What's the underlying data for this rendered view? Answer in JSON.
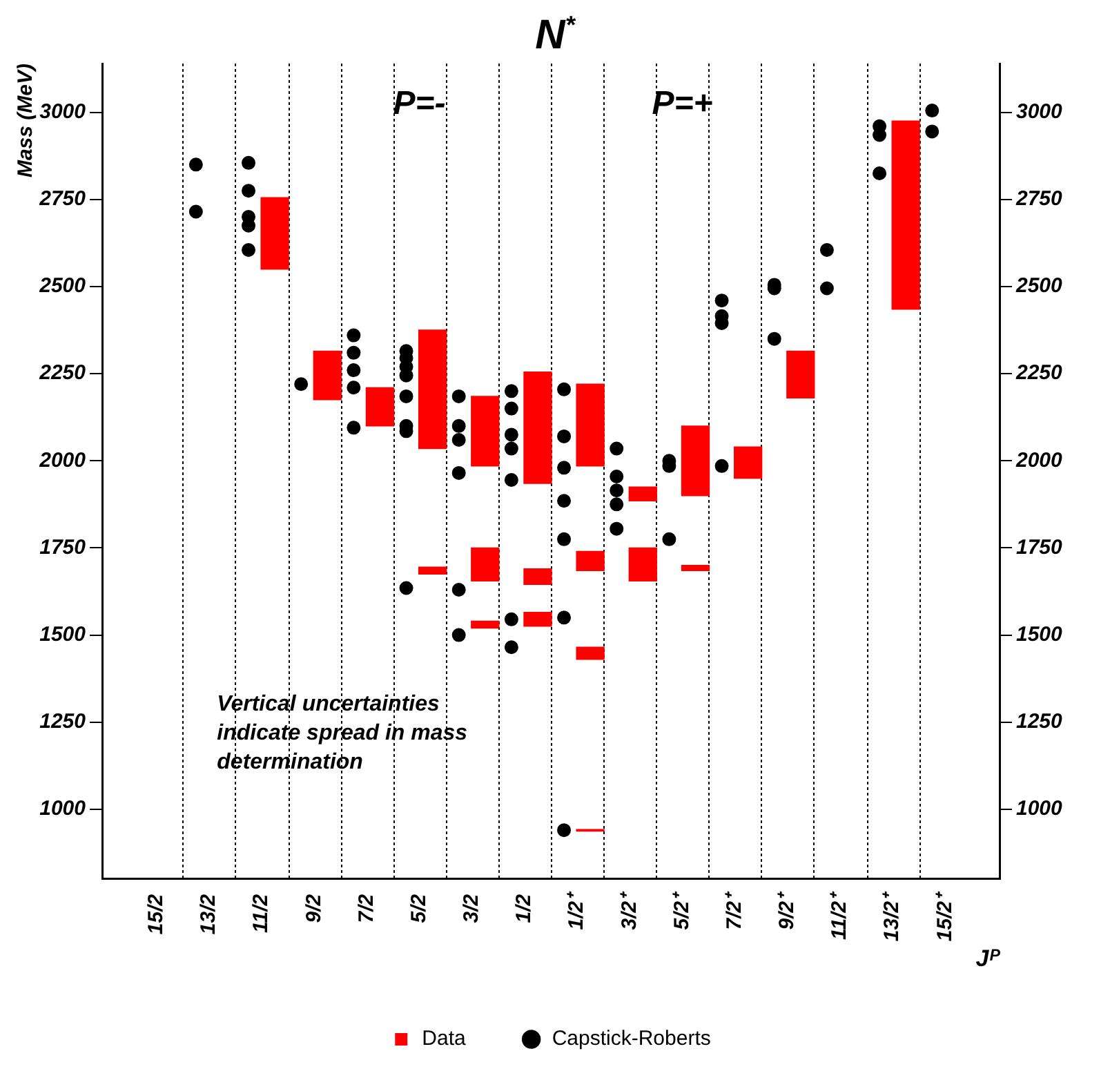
{
  "chart_data": {
    "type": "bar",
    "title": "N$^{*}$",
    "xlabel": "Jᴾ",
    "ylabel": "Mass (MeV)",
    "categories": [
      "15/2",
      "13/2",
      "11/2",
      "9/2",
      "7/2",
      "5/2",
      "3/2",
      "1/2",
      "1/2⁺",
      "3/2⁺",
      "5/2⁺",
      "7/2⁺",
      "9/2⁺",
      "11/2⁺",
      "13/2⁺",
      "15/2⁺"
    ],
    "series": [
      {
        "name": "Data",
        "color": "#ff0000",
        "values": [
          null,
          null,
          205,
          140,
          110,
          340,
          200,
          320,
          235,
          40,
          200,
          90,
          135,
          null,
          540,
          null
        ],
        "base": [
          null,
          null,
          2550,
          2175,
          2100,
          2035,
          1985,
          1935,
          1985,
          1885,
          1900,
          1950,
          2180,
          null,
          2435,
          null
        ]
      },
      {
        "color": "#ff0000",
        "values": [
          null,
          null,
          null,
          null,
          null,
          20,
          95,
          45,
          55,
          95,
          15,
          null,
          null,
          null,
          null,
          null
        ],
        "base": [
          null,
          null,
          null,
          null,
          null,
          1675,
          1655,
          1645,
          1685,
          1655,
          1685,
          null,
          null,
          null,
          null,
          null
        ]
      },
      {
        "color": "#ff0000",
        "values": [
          null,
          null,
          null,
          null,
          null,
          null,
          20,
          40,
          35,
          null,
          null,
          null,
          null,
          null,
          null,
          null
        ],
        "base": [
          null,
          null,
          null,
          null,
          null,
          null,
          1520,
          1525,
          1430,
          null,
          null,
          null,
          null,
          null,
          null,
          null
        ]
      },
      {
        "color": "#ff0000",
        "values": [
          null,
          null,
          null,
          null,
          null,
          null,
          null,
          null,
          5,
          null,
          null,
          null,
          null,
          null,
          null,
          null
        ],
        "base": [
          null,
          null,
          null,
          null,
          null,
          null,
          null,
          null,
          937,
          null,
          null,
          null,
          null,
          null,
          null,
          null
        ]
      },
      {
        "name": "Capstick-Roberts",
        "type": "scatter",
        "color": "#000000",
        "values": [
          null,
          2850,
          2855,
          2220,
          2360,
          2315,
          2185,
          2200,
          2205,
          2035,
          2000,
          2460,
          2505,
          2605,
          2960,
          3005
        ]
      },
      {
        "type": "scatter",
        "color": "#000000",
        "values": [
          null,
          2715,
          2775,
          null,
          2310,
          2295,
          2100,
          2150,
          2070,
          1955,
          1985,
          2415,
          2495,
          2495,
          2935,
          2945
        ]
      },
      {
        "type": "scatter",
        "color": "#000000",
        "values": [
          null,
          null,
          2700,
          null,
          2260,
          2270,
          2060,
          2075,
          1980,
          1915,
          1775,
          2395,
          2350,
          null,
          2825,
          null
        ]
      },
      {
        "type": "scatter",
        "color": "#000000",
        "values": [
          null,
          null,
          2675,
          null,
          2210,
          2245,
          1965,
          2035,
          1885,
          1875,
          null,
          1985,
          null,
          null,
          null,
          null
        ]
      },
      {
        "type": "scatter",
        "color": "#000000",
        "values": [
          null,
          null,
          2605,
          null,
          2095,
          2185,
          1630,
          1945,
          1775,
          1805,
          null,
          null,
          null,
          null,
          null,
          null
        ]
      },
      {
        "type": "scatter",
        "color": "#000000",
        "values": [
          null,
          null,
          null,
          null,
          null,
          2100,
          1500,
          1545,
          1550,
          null,
          null,
          null,
          null,
          null,
          null,
          null
        ]
      },
      {
        "type": "scatter",
        "color": "#000000",
        "values": [
          null,
          null,
          null,
          null,
          null,
          2085,
          null,
          1465,
          940,
          null,
          null,
          null,
          null,
          null,
          null,
          null
        ]
      },
      {
        "type": "scatter",
        "color": "#000000",
        "values": [
          null,
          null,
          null,
          null,
          null,
          1635,
          null,
          null,
          null,
          null,
          null,
          null,
          null,
          null,
          null,
          null
        ]
      }
    ],
    "ylim": [
      800,
      3140
    ],
    "yticks": [
      1000,
      1250,
      1500,
      1750,
      2000,
      2250,
      2500,
      2750,
      3000
    ],
    "y2lim": [
      800,
      3140
    ],
    "y2ticks": [
      1000,
      1250,
      1500,
      1750,
      2000,
      2250,
      2500,
      2750,
      3000
    ],
    "annotations": [
      "P=-",
      "P=+",
      "Vertical uncertainties indicate spread in mass determination"
    ],
    "grid": "x",
    "legend": "bottom",
    "marker": "circle"
  }
}
